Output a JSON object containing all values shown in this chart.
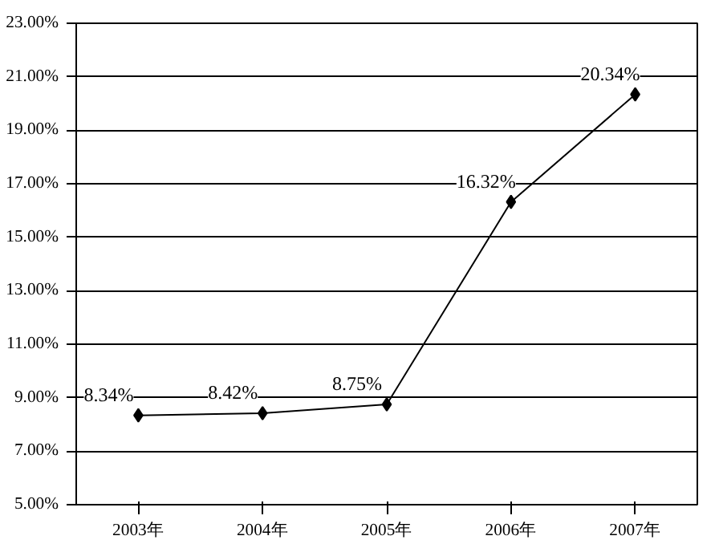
{
  "chart_data": {
    "type": "line",
    "categories": [
      "2003年",
      "2004年",
      "2005年",
      "2006年",
      "2007年"
    ],
    "series": [
      {
        "color": "#000000",
        "values": [
          8.34,
          8.42,
          8.75,
          16.32,
          20.34
        ],
        "value_labels": [
          "8.34%",
          "8.42%",
          "8.75%",
          "16.32%",
          "20.34%"
        ]
      }
    ],
    "ylim": [
      5,
      23
    ],
    "yticks": [
      {
        "value": 5,
        "label": "5.00%"
      },
      {
        "value": 7,
        "label": "7.00%"
      },
      {
        "value": 9,
        "label": "9.00%"
      },
      {
        "value": 11,
        "label": "11.00%"
      },
      {
        "value": 13,
        "label": "13.00%"
      },
      {
        "value": 15,
        "label": "15.00%"
      },
      {
        "value": 17,
        "label": "17.00%"
      },
      {
        "value": 19,
        "label": "19.00%"
      },
      {
        "value": 21,
        "label": "21.00%"
      },
      {
        "value": 23,
        "label": "23.00%"
      }
    ],
    "grid": "y",
    "marker": "diamond",
    "line_style": "solid"
  }
}
